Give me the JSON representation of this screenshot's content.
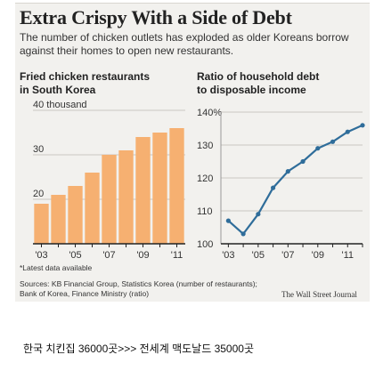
{
  "headline": "Extra Crispy With a Side of Debt",
  "dek": "The number of chicken outlets has exploded as older Koreans borrow against their homes to open new restaurants.",
  "note": "*Latest data available",
  "source_line1": "Sources: KB Financial Group, Statistics Korea (number of restaurants);",
  "source_line2": "Bank of Korea, Finance Ministry (ratio)",
  "credit": "The Wall Street Journal",
  "caption": "한국 치킨집 36000곳>>> 전세계 맥도날드 35000곳",
  "colors": {
    "bar": "#f6b071",
    "line": "#2f6d9a",
    "grid": "#c9c7c2",
    "background": "#f2f1ee"
  },
  "chart_data": [
    {
      "type": "bar",
      "title_line1": "Fried chicken restaurants",
      "title_line2": "in South Korea",
      "x": [
        2003,
        2004,
        2005,
        2006,
        2007,
        2008,
        2009,
        2010,
        2011
      ],
      "values": [
        19,
        21,
        23,
        26,
        30,
        31,
        34,
        35,
        36
      ],
      "ylim": [
        10,
        40
      ],
      "yticks": [
        10,
        20,
        30,
        40
      ],
      "ytick_labels": [
        "",
        "20",
        "30",
        "40 thousand"
      ],
      "xtick_labels": [
        "'03",
        "'05",
        "'07",
        "'09",
        "'11"
      ],
      "xtick_values": [
        2003,
        2005,
        2007,
        2009,
        2011
      ],
      "grid": true
    },
    {
      "type": "line",
      "title_line1": "Ratio of household debt",
      "title_line2": "to disposable income",
      "x": [
        2003,
        2004,
        2005,
        2006,
        2007,
        2008,
        2009,
        2010,
        2011,
        2012
      ],
      "values": [
        107,
        103,
        109,
        117,
        122,
        125,
        129,
        131,
        134,
        136
      ],
      "ylim": [
        100,
        140
      ],
      "yticks": [
        100,
        110,
        120,
        130,
        140
      ],
      "ytick_labels": [
        "100",
        "110",
        "120",
        "130",
        "140%"
      ],
      "xtick_labels": [
        "'03",
        "'05",
        "'07",
        "'09",
        "'11"
      ],
      "xtick_values": [
        2003,
        2005,
        2007,
        2009,
        2011
      ],
      "grid": true
    }
  ]
}
